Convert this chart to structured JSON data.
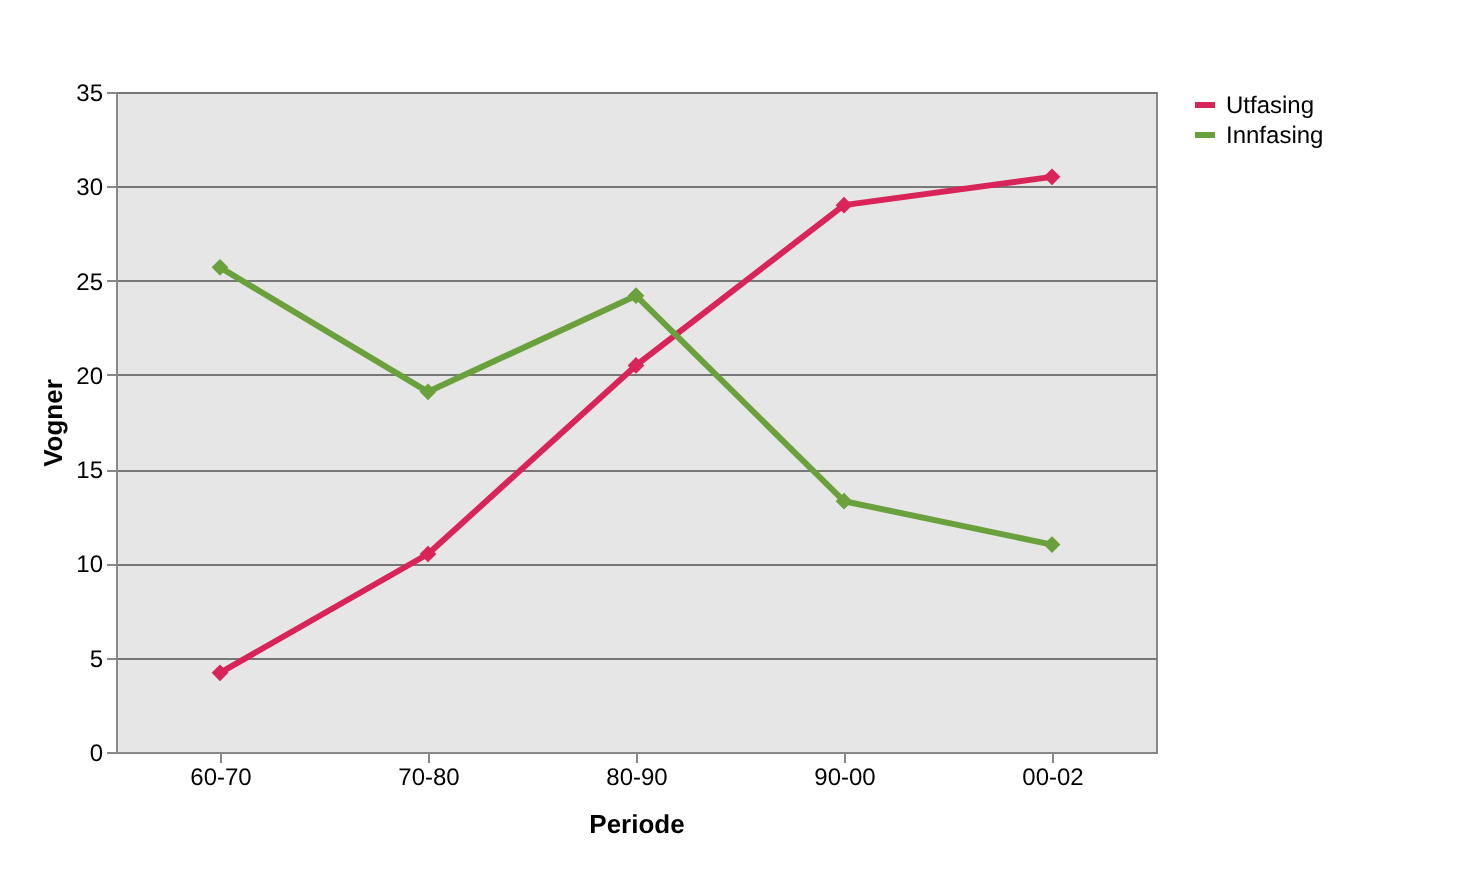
{
  "chart_data": {
    "type": "line",
    "xlabel": "Periode",
    "ylabel": "Vogner",
    "categories": [
      "60-70",
      "70-80",
      "80-90",
      "90-00",
      "00-02"
    ],
    "series": [
      {
        "name": "Utfasing",
        "color": "#d9245a",
        "values": [
          4.2,
          10.5,
          20.5,
          29,
          30.5
        ]
      },
      {
        "name": "Innfasing",
        "color": "#6aa13c",
        "values": [
          25.7,
          19.1,
          24.2,
          13.3,
          11
        ]
      }
    ],
    "ylim": [
      0,
      35
    ],
    "yticks": [
      0,
      5,
      10,
      15,
      20,
      25,
      30,
      35
    ],
    "grid": "y",
    "legend": "right",
    "marker": "diamond",
    "line_style": "solid"
  }
}
